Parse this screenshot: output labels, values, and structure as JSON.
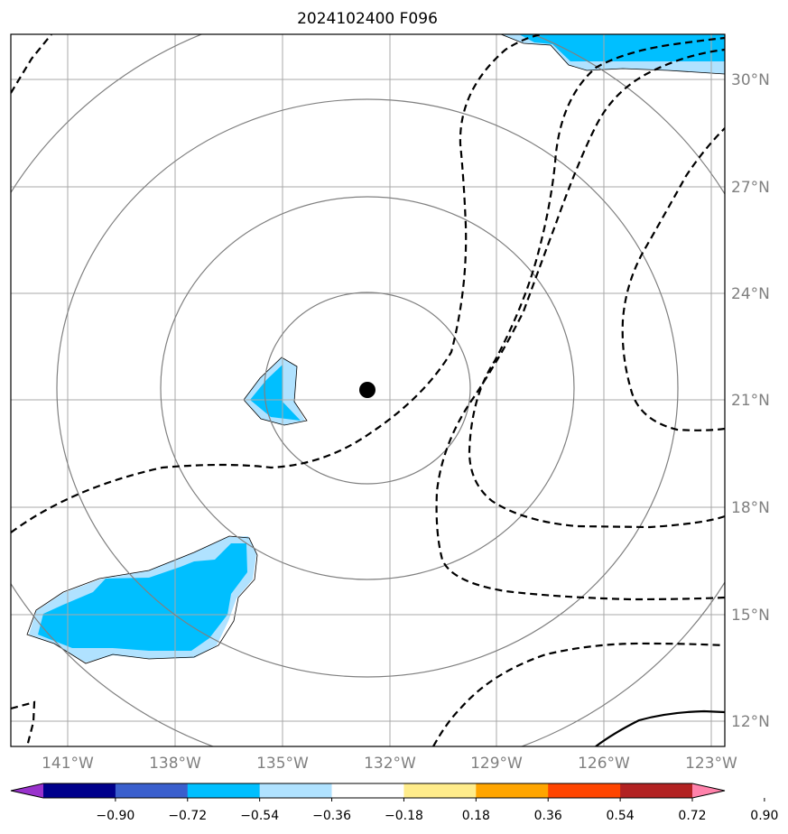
{
  "title": "2024102400 F096",
  "lon_ticks": [
    "141°W",
    "138°W",
    "135°W",
    "132°W",
    "129°W",
    "126°W",
    "123°W"
  ],
  "lat_ticks": [
    "30°N",
    "27°N",
    "24°N",
    "21°N",
    "18°N",
    "15°N",
    "12°N"
  ],
  "storm_center": {
    "lon": -132.7,
    "lat": 21.3
  },
  "range_rings_deg": [
    3,
    6,
    9,
    12
  ],
  "colorbar": {
    "ticks": [
      "−0.90",
      "−0.72",
      "−0.54",
      "−0.36",
      "−0.18",
      "0.18",
      "0.36",
      "0.54",
      "0.72",
      "0.90"
    ],
    "colors": [
      "#9932cc",
      "#00008b",
      "#3a5fcd",
      "#00bfff",
      "#b0e2ff",
      "#ffffff",
      "#ffec8b",
      "#ffa500",
      "#ff4500",
      "#b22222",
      "#ff82ab"
    ]
  },
  "colors": {
    "grid": "#a9a9a9",
    "rings": "#808080",
    "contour": "#000000",
    "fill_dark": "#00bfff",
    "fill_light": "#b0e2ff"
  }
}
